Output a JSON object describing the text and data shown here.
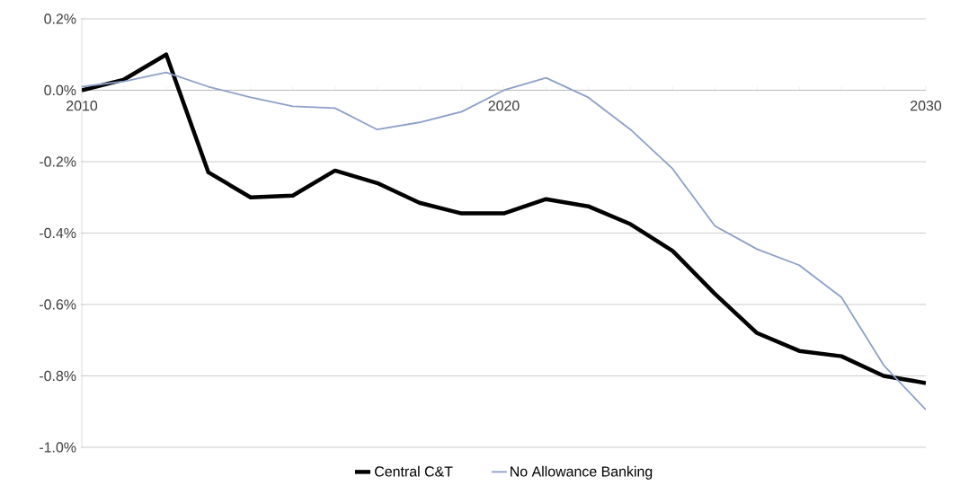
{
  "chart_data": {
    "type": "line",
    "x": [
      2010,
      2011,
      2012,
      2013,
      2014,
      2015,
      2016,
      2017,
      2018,
      2019,
      2020,
      2021,
      2022,
      2023,
      2024,
      2025,
      2026,
      2027,
      2028,
      2029,
      2030
    ],
    "series": [
      {
        "name": "Central C&T",
        "color": "#000000",
        "values": [
          0.0,
          0.03,
          0.1,
          -0.23,
          -0.3,
          -0.295,
          -0.225,
          -0.26,
          -0.315,
          -0.345,
          -0.345,
          -0.305,
          -0.325,
          -0.375,
          -0.45,
          -0.57,
          -0.68,
          -0.73,
          -0.745,
          -0.8,
          -0.82
        ]
      },
      {
        "name": "No Allowance Banking",
        "color": "#8ea0c8",
        "values": [
          0.01,
          0.025,
          0.05,
          0.01,
          -0.02,
          -0.045,
          -0.05,
          -0.11,
          -0.09,
          -0.06,
          0.0,
          0.035,
          -0.02,
          -0.11,
          -0.22,
          -0.38,
          -0.445,
          -0.49,
          -0.58,
          -0.77,
          -0.895
        ]
      }
    ],
    "xlim": [
      2010,
      2030
    ],
    "xticks": [
      2010,
      2020,
      2030
    ],
    "ylim": [
      -1.0,
      0.2
    ],
    "yticks": [
      {
        "value": -1.0,
        "label": "-1.0%"
      },
      {
        "value": -0.8,
        "label": "-0.8%"
      },
      {
        "value": -0.6,
        "label": "-0.6%"
      },
      {
        "value": -0.4,
        "label": "-0.4%"
      },
      {
        "value": -0.2,
        "label": "-0.2%"
      },
      {
        "value": 0.0,
        "label": "0.0%"
      },
      {
        "value": 0.2,
        "label": "0.2%"
      }
    ],
    "grid": "y",
    "legend": "bottom",
    "marker": "none",
    "line_style": "solid"
  }
}
